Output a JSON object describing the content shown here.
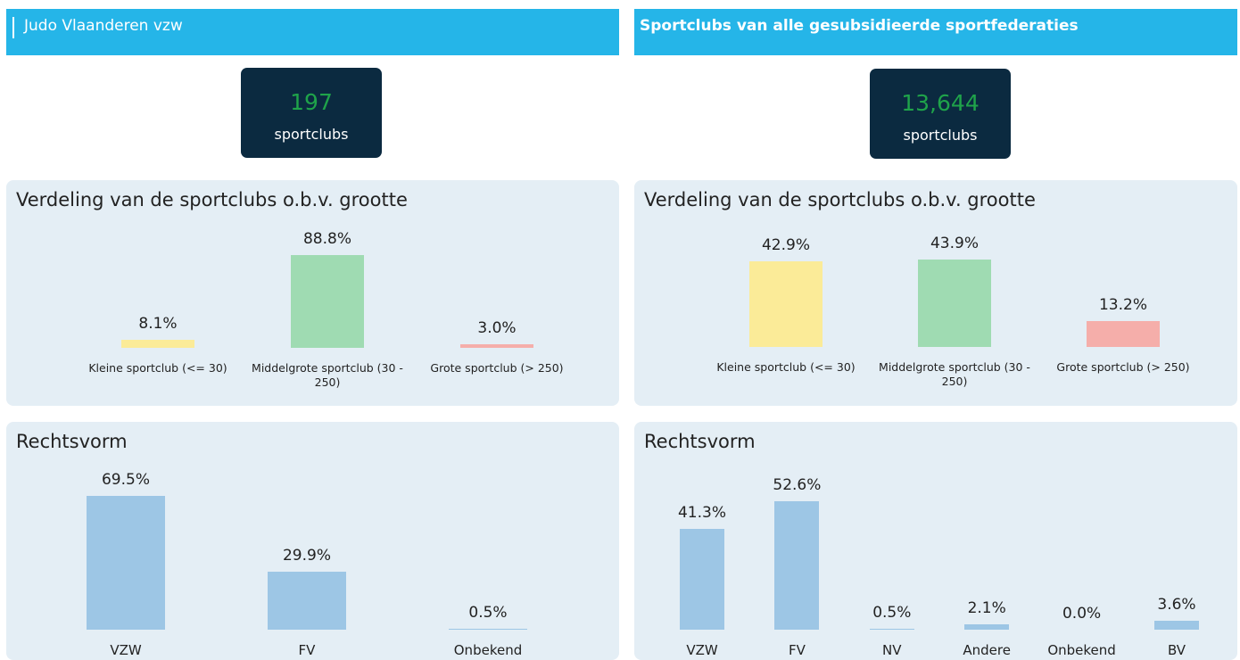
{
  "panels": [
    {
      "header": "Judo Vlaanderen vzw",
      "kpi": 197,
      "kpi_unit": "sportclubs"
    },
    {
      "header": "Sportclubs van alle gesubsidieerde sportfederaties",
      "kpi": {
        "value": 13644,
        "label": "13,644"
      },
      "kpi_unit": "sportclubs"
    }
  ],
  "chart_data": [
    {
      "type": "bar",
      "title": "Verdeling van de sportclubs o.b.v. grootte",
      "categories": [
        "Kleine sportclub (<= 30)",
        "Middelgrote sportclub (30 - 250)",
        "Grote sportclub (> 250)"
      ],
      "values": [
        8.1,
        88.8,
        3.0
      ],
      "value_labels": [
        "8.1%",
        "88.8%",
        "3.0%"
      ],
      "colors": [
        "#fbeb98",
        "#9fdbb2",
        "#f5aeaa"
      ]
    },
    {
      "type": "bar",
      "title": "Verdeling van de sportclubs o.b.v. grootte",
      "categories": [
        "Kleine sportclub (<= 30)",
        "Middelgrote sportclub (30 - 250)",
        "Grote sportclub (> 250)"
      ],
      "values": [
        42.9,
        43.9,
        13.2
      ],
      "value_labels": [
        "42.9%",
        "43.9%",
        "13.2%"
      ],
      "colors": [
        "#fbeb98",
        "#9fdbb2",
        "#f5aeaa"
      ]
    },
    {
      "type": "bar",
      "title": "Rechtsvorm",
      "categories": [
        "VZW",
        "FV",
        "Onbekend"
      ],
      "values": [
        69.5,
        29.9,
        0.5
      ],
      "value_labels": [
        "69.5%",
        "29.9%",
        "0.5%"
      ],
      "color": "#9dc6e5"
    },
    {
      "type": "bar",
      "title": "Rechtsvorm",
      "categories": [
        "VZW",
        "FV",
        "NV",
        "Andere",
        "Onbekend",
        "BV"
      ],
      "values": [
        41.3,
        52.6,
        0.5,
        2.1,
        0.0,
        3.6
      ],
      "value_labels": [
        "41.3%",
        "52.6%",
        "0.5%",
        "2.1%",
        "0.0%",
        "3.6%"
      ],
      "color": "#9dc6e5"
    }
  ]
}
